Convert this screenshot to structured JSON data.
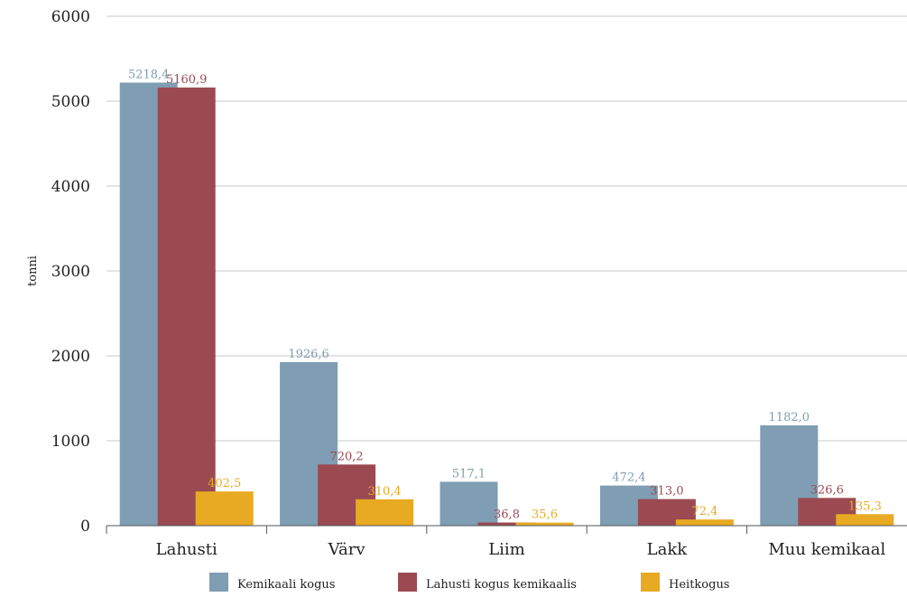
{
  "chart_data": {
    "type": "bar",
    "title": "",
    "xlabel": "",
    "ylabel": "tonni",
    "ylim": [
      0,
      6000
    ],
    "yticks": [
      0,
      1000,
      2000,
      3000,
      4000,
      5000,
      6000
    ],
    "grid": true,
    "legend_position": "bottom",
    "categories": [
      "Lahusti",
      "Värv",
      "Liim",
      "Lakk",
      "Muu kemikaal"
    ],
    "series": [
      {
        "name": "Kemikaali kogus",
        "color": "#7f9db3",
        "values": [
          5218.4,
          1926.6,
          517.1,
          472.4,
          1182.0
        ],
        "labels": [
          "5218,4",
          "1926,6",
          "517,1",
          "472,4",
          "1182,0"
        ]
      },
      {
        "name": "Lahusti kogus kemikaalis",
        "color": "#9b4a52",
        "values": [
          5160.9,
          720.2,
          36.8,
          313.0,
          326.6
        ],
        "labels": [
          "5160,9",
          "720,2",
          "36,8",
          "313,0",
          "326,6"
        ]
      },
      {
        "name": "Heitkogus",
        "color": "#e8aa22",
        "values": [
          402.5,
          310.4,
          35.6,
          72.4,
          135.3
        ],
        "labels": [
          "402,5",
          "310,4",
          "35,6",
          "72,4",
          "135,3"
        ]
      }
    ]
  }
}
